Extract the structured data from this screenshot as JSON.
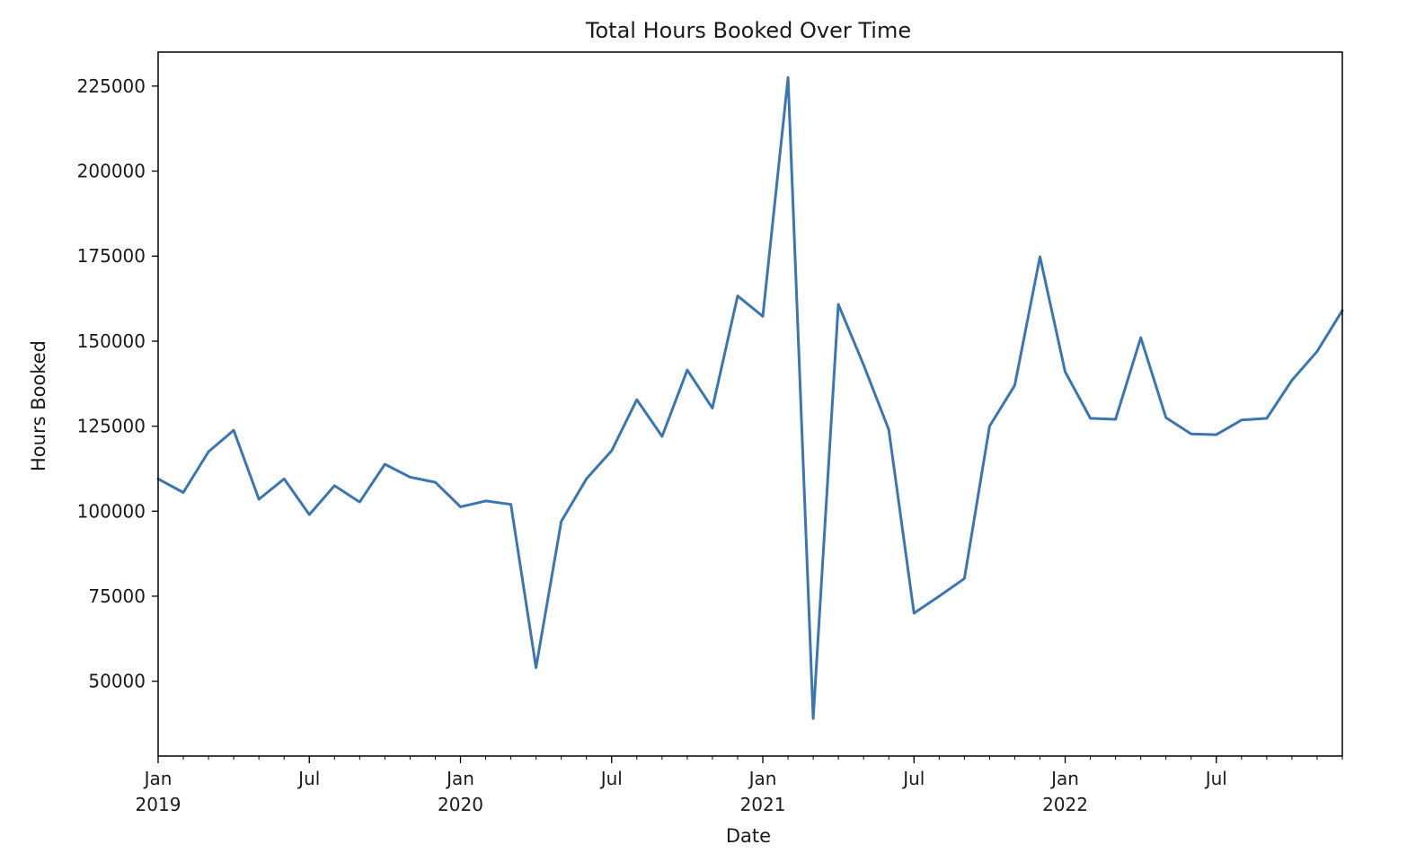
{
  "chart_data": {
    "type": "line",
    "title": "Total Hours Booked Over Time",
    "xlabel": "Date",
    "ylabel": "Hours Booked",
    "xlim": [
      "2019-01",
      "2022-12"
    ],
    "ylim": [
      28000,
      235000
    ],
    "grid": false,
    "legend": "none",
    "color": "#3a76af",
    "yticks": [
      {
        "value": 50000,
        "label": "50000"
      },
      {
        "value": 75000,
        "label": "75000"
      },
      {
        "value": 100000,
        "label": "100000"
      },
      {
        "value": 125000,
        "label": "125000"
      },
      {
        "value": 150000,
        "label": "150000"
      },
      {
        "value": 175000,
        "label": "175000"
      },
      {
        "value": 200000,
        "label": "200000"
      },
      {
        "value": 225000,
        "label": "225000"
      }
    ],
    "xticks": [
      {
        "date": "2019-01",
        "label": "Jan",
        "year": "2019"
      },
      {
        "date": "2019-07",
        "label": "Jul",
        "year": ""
      },
      {
        "date": "2020-01",
        "label": "Jan",
        "year": "2020"
      },
      {
        "date": "2020-07",
        "label": "Jul",
        "year": ""
      },
      {
        "date": "2021-01",
        "label": "Jan",
        "year": "2021"
      },
      {
        "date": "2021-07",
        "label": "Jul",
        "year": ""
      },
      {
        "date": "2022-01",
        "label": "Jan",
        "year": "2022"
      },
      {
        "date": "2022-07",
        "label": "Jul",
        "year": ""
      }
    ],
    "series": [
      {
        "x": [
          "2019-01",
          "2019-02",
          "2019-03",
          "2019-04",
          "2019-05",
          "2019-06",
          "2019-07",
          "2019-08",
          "2019-09",
          "2019-10",
          "2019-11",
          "2019-12",
          "2020-01",
          "2020-02",
          "2020-03",
          "2020-04",
          "2020-05",
          "2020-06",
          "2020-07",
          "2020-08",
          "2020-09",
          "2020-10",
          "2020-11",
          "2020-12",
          "2021-01",
          "2021-02",
          "2021-03",
          "2021-04",
          "2021-05",
          "2021-06",
          "2021-07",
          "2021-08",
          "2021-09",
          "2021-10",
          "2021-11",
          "2021-12",
          "2022-01",
          "2022-02",
          "2022-03",
          "2022-04",
          "2022-05",
          "2022-06",
          "2022-07",
          "2022-08",
          "2022-09",
          "2022-10",
          "2022-11",
          "2022-12"
        ],
        "values": [
          109500,
          105500,
          117500,
          123800,
          103500,
          109500,
          99000,
          107500,
          102700,
          113800,
          110000,
          108500,
          101300,
          103000,
          102000,
          54000,
          97000,
          109500,
          117800,
          132800,
          122000,
          141500,
          130300,
          163300,
          157300,
          227500,
          39000,
          160800,
          143000,
          124000,
          70000,
          75000,
          80200,
          125000,
          137000,
          174800,
          141000,
          127300,
          127000,
          151000,
          127500,
          122700,
          122500,
          126800,
          127300,
          138500,
          147000,
          159000
        ]
      }
    ]
  }
}
